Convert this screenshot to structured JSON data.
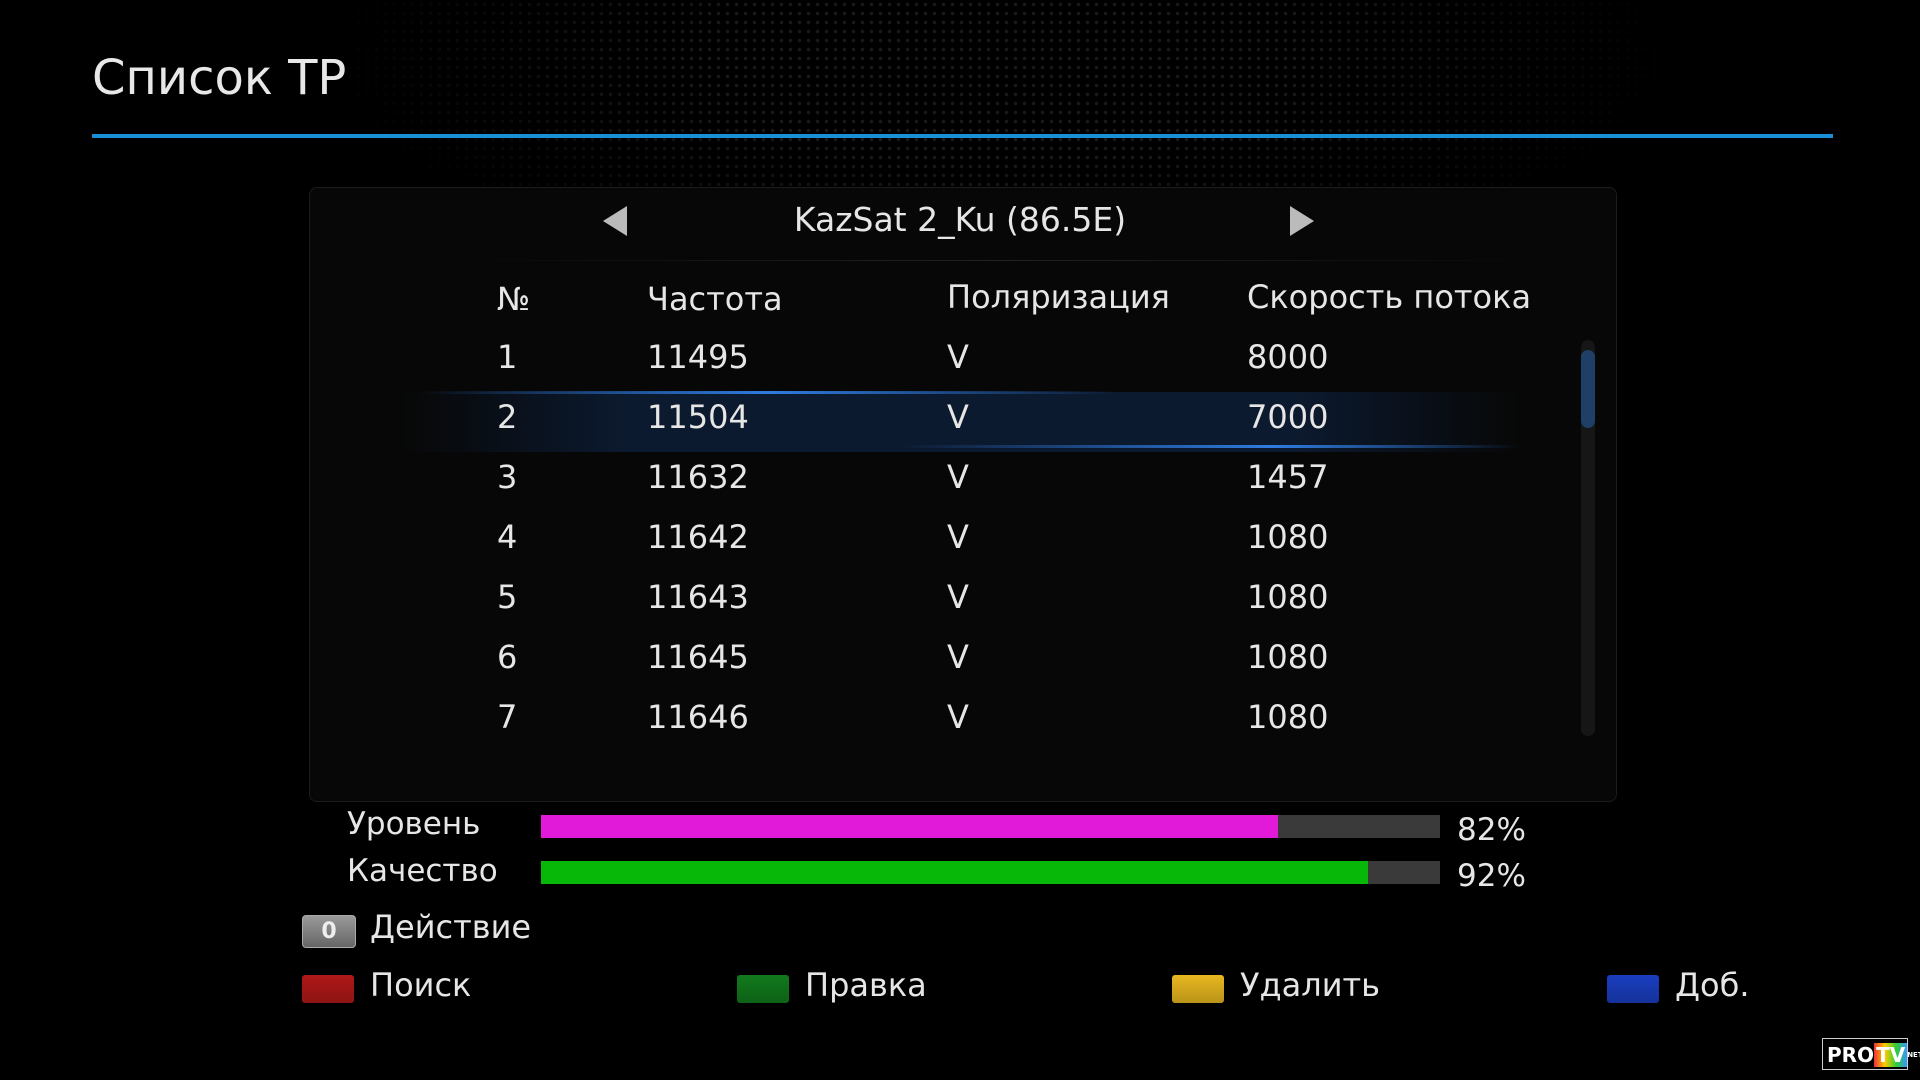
{
  "title": "Список TP",
  "satellite": "KazSat 2_Ku (86.5E)",
  "columns": [
    "№",
    "Частота",
    "Поляризация",
    "Скорость потока"
  ],
  "rows": [
    {
      "no": "1",
      "freq": "11495",
      "pol": "V",
      "sr": "8000"
    },
    {
      "no": "2",
      "freq": "11504",
      "pol": "V",
      "sr": "7000"
    },
    {
      "no": "3",
      "freq": "11632",
      "pol": "V",
      "sr": "1457"
    },
    {
      "no": "4",
      "freq": "11642",
      "pol": "V",
      "sr": "1080"
    },
    {
      "no": "5",
      "freq": "11643",
      "pol": "V",
      "sr": "1080"
    },
    {
      "no": "6",
      "freq": "11645",
      "pol": "V",
      "sr": "1080"
    },
    {
      "no": "7",
      "freq": "11646",
      "pol": "V",
      "sr": "1080"
    }
  ],
  "selected_row": 2,
  "signal": {
    "level": {
      "label": "Уровень",
      "value": 82,
      "text": "82%",
      "color": "#e01ad8"
    },
    "quality": {
      "label": "Качество",
      "value": 92,
      "text": "92%",
      "color": "#08b808"
    }
  },
  "action": {
    "key": "0",
    "label": "Действие"
  },
  "color_keys": [
    {
      "label": "Поиск",
      "color": "#b01818"
    },
    {
      "label": "Правка",
      "color": "#117a1c"
    },
    {
      "label": "Удалить",
      "color": "#e8b820"
    },
    {
      "label": "Доб.",
      "color": "#1a3ec0"
    }
  ],
  "watermark": {
    "text1": "PRO",
    "text2": "TV",
    "text3": "NET.UA"
  }
}
